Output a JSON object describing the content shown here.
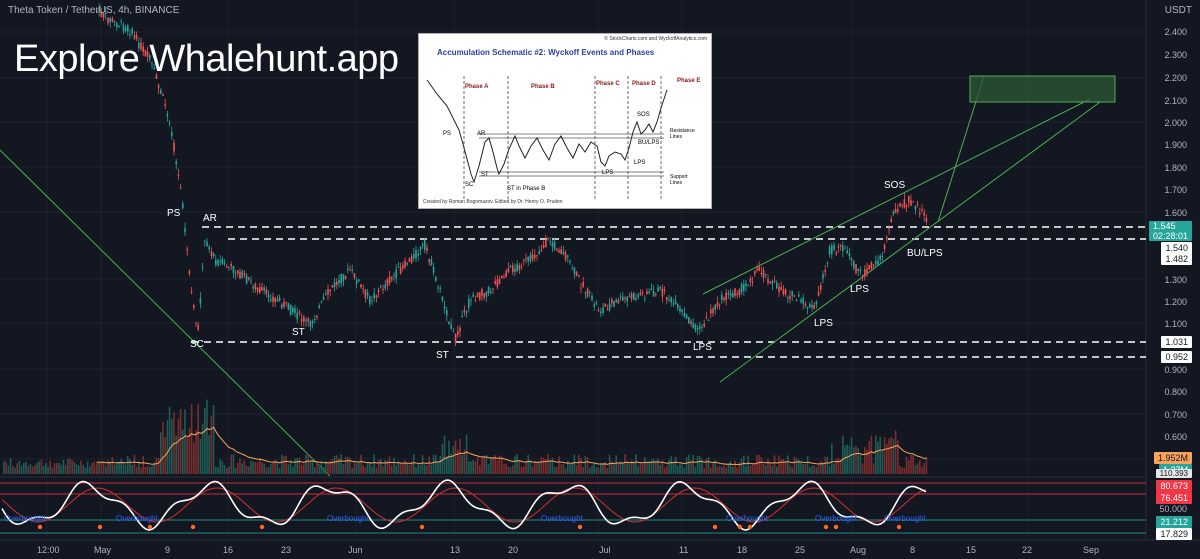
{
  "header": {
    "symbol_title": "Theta Token / TetherUS, 4h, BINANCE",
    "promo_text": "Explore Whalehunt.app",
    "currency": "USDT"
  },
  "price_axis": {
    "ticks": [
      "2.400",
      "2.300",
      "2.200",
      "2.100",
      "2.000",
      "1.900",
      "1.800",
      "1.700",
      "1.600",
      "1.300",
      "1.200",
      "1.100",
      "0.900",
      "0.800",
      "0.700",
      "0.600",
      "50.000"
    ],
    "tags": {
      "last_price": "1.545",
      "countdown": "02:28:01",
      "level_1540": "1.540",
      "level_1482": "1.482",
      "level_1031": "1.031",
      "level_0952": "0.952",
      "volume_ma": "1.952M",
      "volume": "1.27M",
      "osc_top": "110.393",
      "osc_80": "80.673",
      "osc_76": "76.451",
      "osc_21": "21.212",
      "osc_17": "17.829"
    },
    "colors": {
      "last_price": "#26a69a",
      "volume_ma": "#f7a35c",
      "volume": "#26a69a",
      "osc_red": "#f23645",
      "osc_green": "#26a69a"
    }
  },
  "time_axis": [
    "12:00",
    "May",
    "9",
    "16",
    "23",
    "Jun",
    "13",
    "20",
    "Jul",
    "11",
    "18",
    "25",
    "Aug",
    "8",
    "15",
    "22",
    "Sep"
  ],
  "annotations": {
    "ps": "PS",
    "ar": "AR",
    "sc": "SC",
    "st1": "ST",
    "st2": "ST",
    "lps1": "LPS",
    "lps2": "LPS",
    "lps3": "LPS",
    "sos": "SOS",
    "bu_lps": "BU/LPS"
  },
  "oscillator": {
    "overbought_label": "Overbought"
  },
  "schematic": {
    "credit": "© StockCharts.com and WyckoffAnalytics.com",
    "title": "Accumulation Schematic #2: Wyckoff Events and Phases",
    "footer": "Created by Roman Bogomazov. Edited by Dr. Henry O. Pruden",
    "phases": [
      "Phase A",
      "Phase B",
      "Phase C",
      "Phase D",
      "Phase E"
    ],
    "labels": {
      "ps": "PS",
      "ar": "AR",
      "sc": "SC",
      "st": "ST",
      "st_b": "ST in Phase B",
      "sos": "SOS",
      "bu_lps": "BU/LPS",
      "lps1": "LPS",
      "lps2": "LPS",
      "resistance": "Resistance\nLines",
      "support": "Support\nLines"
    }
  }
}
